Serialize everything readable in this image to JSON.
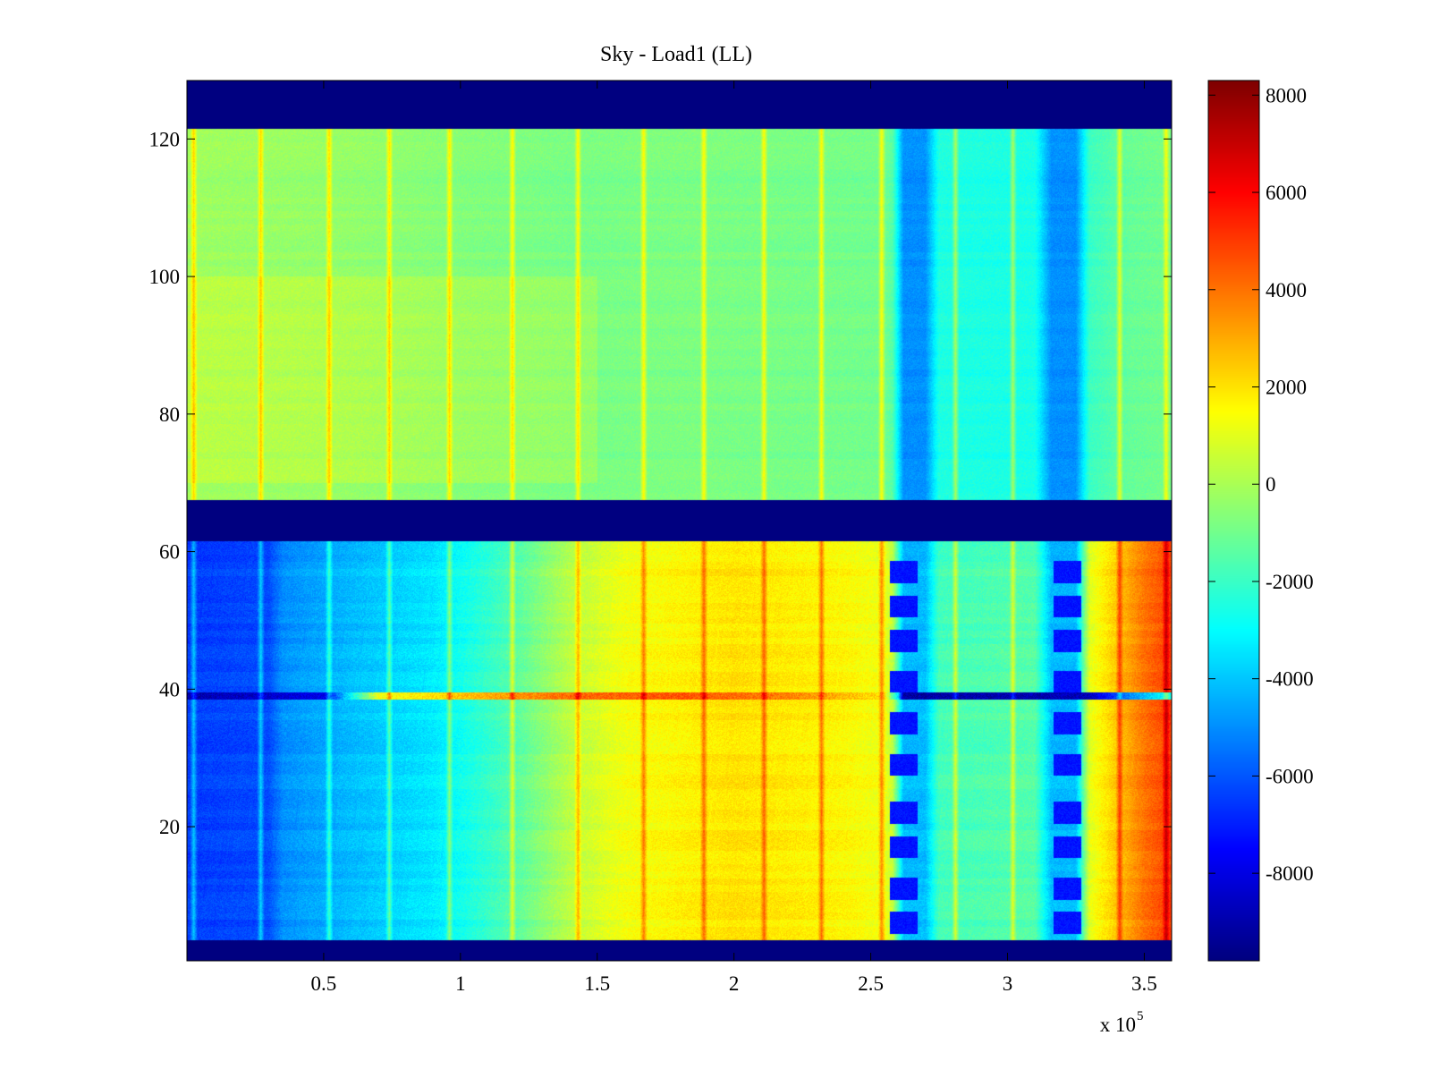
{
  "chart_data": {
    "type": "heatmap",
    "title": "Sky - Load1 (LL)",
    "xlabel": "",
    "ylabel": "",
    "x_range": [
      0,
      360000
    ],
    "y_range": [
      0.5,
      128.5
    ],
    "x_ticks": [
      50000,
      100000,
      150000,
      200000,
      250000,
      300000,
      350000
    ],
    "x_tick_labels": [
      "0.5",
      "1",
      "1.5",
      "2",
      "2.5",
      "3",
      "3.5"
    ],
    "x_exponent_label": {
      "base": "x 10",
      "exponent": "5"
    },
    "y_ticks": [
      20,
      40,
      60,
      80,
      100,
      120
    ],
    "y_tick_labels": [
      "20",
      "40",
      "60",
      "80",
      "100",
      "120"
    ],
    "colormap": "jet",
    "color_range": [
      -9800,
      8300
    ],
    "colorbar_ticks": [
      8000,
      6000,
      4000,
      2000,
      0,
      -2000,
      -4000,
      -6000,
      -8000
    ],
    "colorbar_tick_labels": [
      "8000",
      "6000",
      "4000",
      "2000",
      "0",
      "-2000",
      "-4000",
      "-6000",
      "-8000"
    ],
    "masked_row_bands": [
      [
        0.5,
        3.5
      ],
      [
        61.5,
        67.5
      ],
      [
        121.5,
        128.5
      ]
    ],
    "masked_value": -9800,
    "upper_block": {
      "rows": [
        67.5,
        121.5
      ],
      "profile": [
        [
          0,
          -200
        ],
        [
          30000,
          -300
        ],
        [
          60000,
          -400
        ],
        [
          100000,
          -700
        ],
        [
          140000,
          -900
        ],
        [
          180000,
          -800
        ],
        [
          220000,
          -900
        ],
        [
          255000,
          -1000
        ],
        [
          258000,
          -1500
        ],
        [
          262000,
          -5000
        ],
        [
          270000,
          -5000
        ],
        [
          275000,
          -2500
        ],
        [
          310000,
          -2600
        ],
        [
          316000,
          -5000
        ],
        [
          325000,
          -5000
        ],
        [
          330000,
          -2000
        ],
        [
          345000,
          -1200
        ],
        [
          360000,
          -1000
        ]
      ]
    },
    "lower_block": {
      "rows": [
        3.5,
        61.5
      ],
      "profile": [
        [
          0,
          -6500
        ],
        [
          30000,
          -6200
        ],
        [
          35000,
          -5000
        ],
        [
          60000,
          -4200
        ],
        [
          90000,
          -3400
        ],
        [
          120000,
          -1500
        ],
        [
          140000,
          300
        ],
        [
          160000,
          1300
        ],
        [
          200000,
          2000
        ],
        [
          240000,
          1600
        ],
        [
          255000,
          1200
        ],
        [
          258000,
          500
        ],
        [
          262000,
          -4200
        ],
        [
          270000,
          -4200
        ],
        [
          275000,
          -1800
        ],
        [
          310000,
          -1500
        ],
        [
          316000,
          -4200
        ],
        [
          325000,
          -4200
        ],
        [
          330000,
          1000
        ],
        [
          340000,
          2500
        ],
        [
          350000,
          4000
        ],
        [
          360000,
          5000
        ]
      ],
      "dark_dots_rows": [
        6,
        11,
        17,
        22,
        29,
        35,
        41,
        47,
        52,
        57
      ],
      "dark_dots_x": [
        262000,
        322000
      ],
      "anomaly_row": {
        "row": 39,
        "profile": [
          [
            0,
            -9000
          ],
          [
            50000,
            -8000
          ],
          [
            60000,
            -3000
          ],
          [
            70000,
            1200
          ],
          [
            100000,
            2500
          ],
          [
            140000,
            4200
          ],
          [
            180000,
            4600
          ],
          [
            220000,
            3800
          ],
          [
            255000,
            2000
          ],
          [
            260000,
            -3500
          ],
          [
            262000,
            -9200
          ],
          [
            330000,
            -8800
          ],
          [
            345000,
            -5000
          ],
          [
            360000,
            -2500
          ]
        ]
      }
    },
    "streak_columns": [
      2500,
      27000,
      52000,
      74000,
      96000,
      119000,
      143000,
      167000,
      189000,
      211000,
      232000,
      254000,
      281000,
      302000,
      341000,
      358000
    ],
    "streak_offset": 1400
  }
}
